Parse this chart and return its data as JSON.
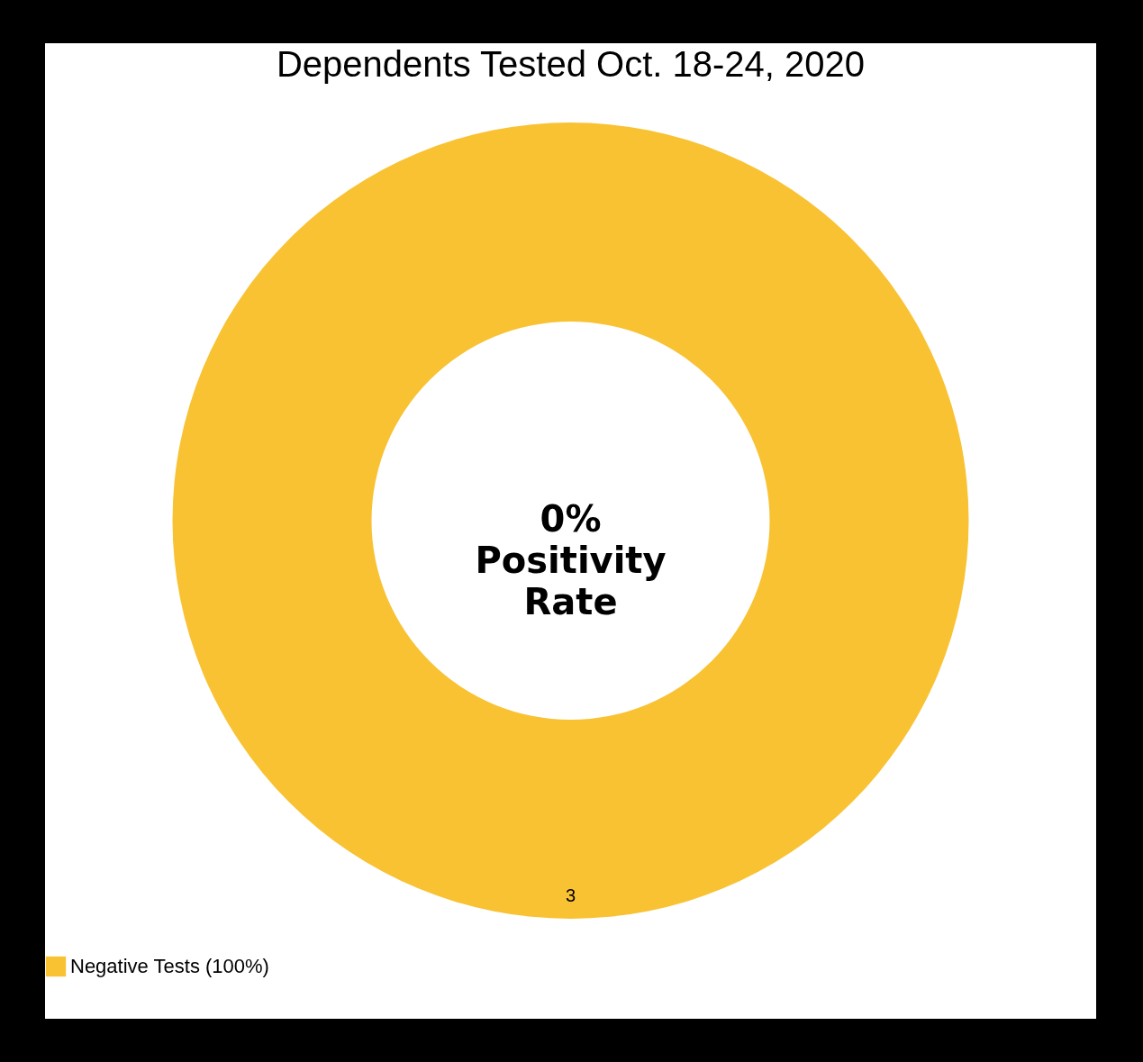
{
  "chart_data": {
    "type": "donut",
    "title": "Dependents Tested Oct. 18-24, 2020",
    "categories": [
      "Negative Tests (100%)"
    ],
    "values": [
      3
    ],
    "colors": [
      "#f9c233"
    ],
    "data_labels": true,
    "legend": "bottom",
    "annotations": [
      "0% Positivity Rate"
    ]
  }
}
